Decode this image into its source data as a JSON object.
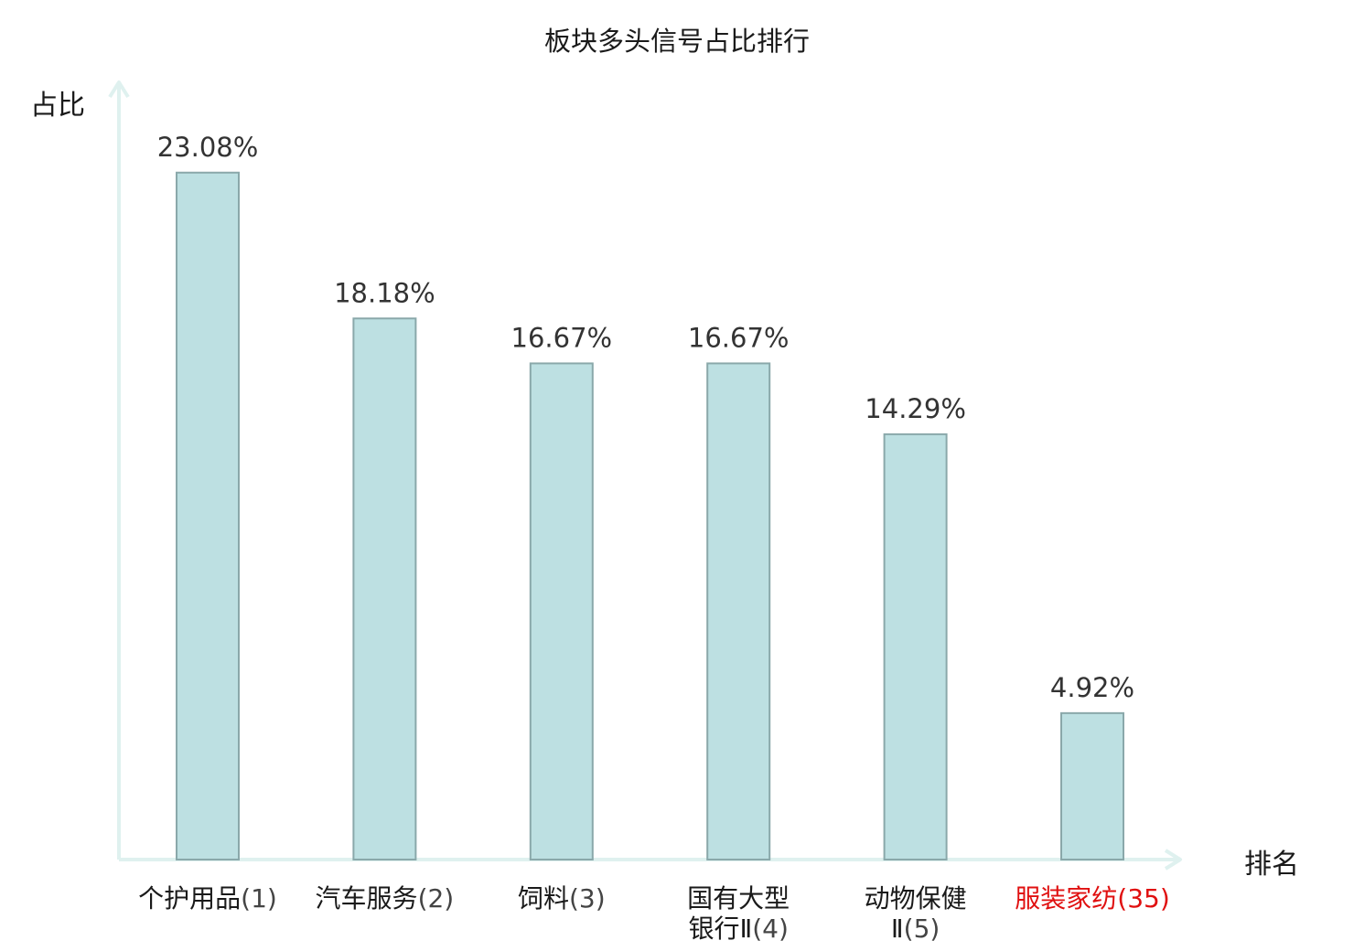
{
  "chart_data": {
    "type": "bar",
    "title": "板块多头信号占比排行",
    "ylabel": "占比",
    "xlabel": "排名",
    "ylim": [
      0,
      25.5
    ],
    "grid": false,
    "legend": "none",
    "categories": [
      {
        "lines": [
          "个护用品"
        ],
        "rank": "(1)",
        "highlight": false
      },
      {
        "lines": [
          "汽车服务"
        ],
        "rank": "(2)",
        "highlight": false
      },
      {
        "lines": [
          "饲料"
        ],
        "rank": "(3)",
        "highlight": false
      },
      {
        "lines": [
          "国有大型",
          "银行Ⅱ"
        ],
        "rank": "(4)",
        "highlight": false
      },
      {
        "lines": [
          "动物保健",
          "Ⅱ"
        ],
        "rank": "(5)",
        "highlight": false
      },
      {
        "lines": [
          "服装家纺"
        ],
        "rank": "(35)",
        "highlight": true
      }
    ],
    "values": [
      23.08,
      18.18,
      16.67,
      16.67,
      14.29,
      4.92
    ],
    "value_labels": [
      "23.08%",
      "18.18%",
      "16.67%",
      "16.67%",
      "14.29%",
      "4.92%"
    ],
    "colors": {
      "bar_fill": "#bde0e2",
      "bar_stroke": "#8aa8aa",
      "axis": "#dff1ef",
      "highlight": "#e01010",
      "value_text": "#333333"
    }
  }
}
